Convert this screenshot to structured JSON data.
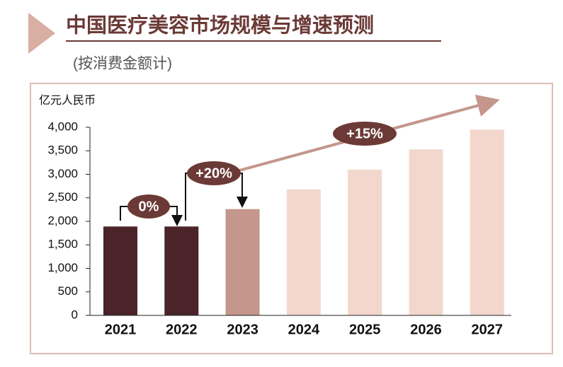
{
  "chart_data": {
    "type": "bar",
    "title": "中国医疗美容市场规模与增速预测",
    "subtitle": "(按消费金额计)",
    "y_label": "亿元人民币",
    "categories": [
      "2021",
      "2022",
      "2023",
      "2024",
      "2025",
      "2026",
      "2027"
    ],
    "values": [
      1890,
      1890,
      2260,
      2680,
      3100,
      3530,
      3950
    ],
    "colors": [
      "#4a2429",
      "#4a2429",
      "#c4968c",
      "#f3d7cd",
      "#f3d7cd",
      "#f3d7cd",
      "#f3d7cd"
    ],
    "ylim": [
      0,
      4000
    ],
    "yticks": [
      0,
      500,
      {
        "value": 1000,
        "label": "1,000"
      },
      {
        "value": 1500,
        "label": "1,500"
      },
      {
        "value": 2000,
        "label": "2,000"
      },
      {
        "value": 2500,
        "label": "2,500"
      },
      {
        "value": 3000,
        "label": "3,000"
      },
      {
        "value": 3500,
        "label": "3,500"
      },
      {
        "value": 4000,
        "label": "4,000"
      }
    ],
    "annotations": [
      "0%",
      "+20%",
      "+15%"
    ]
  }
}
